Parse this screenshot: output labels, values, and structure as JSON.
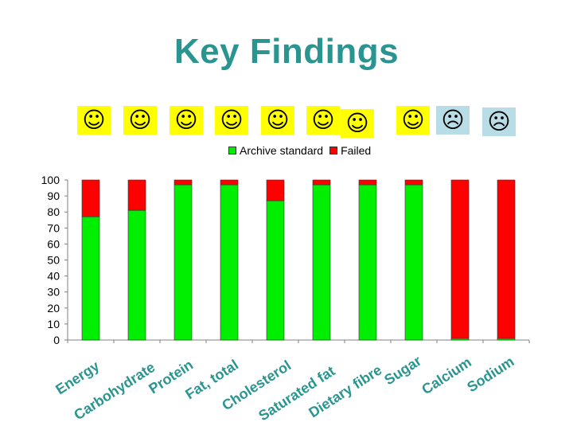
{
  "slide": {
    "title": "Key Findings"
  },
  "faces": [
    {
      "glyph": "☺",
      "mood": "happy",
      "bg": "#ffff00"
    },
    {
      "glyph": "☺",
      "mood": "happy",
      "bg": "#ffff00"
    },
    {
      "glyph": "☺",
      "mood": "happy",
      "bg": "#ffff00"
    },
    {
      "glyph": "☺",
      "mood": "happy",
      "bg": "#ffff00"
    },
    {
      "glyph": "☺",
      "mood": "happy",
      "bg": "#ffff00"
    },
    {
      "glyph": "☺",
      "mood": "happy",
      "bg": "#ffff00"
    },
    {
      "glyph": "☺",
      "mood": "happy",
      "bg": "#ffff00"
    },
    {
      "glyph": "☺",
      "mood": "happy",
      "bg": "#ffff00"
    },
    {
      "glyph": "☹",
      "mood": "sad",
      "bg": "#b9dde6"
    },
    {
      "glyph": "☹",
      "mood": "sad",
      "bg": "#b9dde6"
    }
  ],
  "chart_data": {
    "type": "bar",
    "stacked": true,
    "categories": [
      "Energy",
      "Carbohydrate",
      "Protein",
      "Fat, total",
      "Cholesterol",
      "Saturated fat",
      "Dietary fibre",
      "Sugar",
      "Calcium",
      "Sodium"
    ],
    "series": [
      {
        "name": "Archive standard",
        "color": "#00ee00",
        "values": [
          77,
          81,
          97,
          97,
          87,
          97,
          97,
          97,
          1,
          1
        ]
      },
      {
        "name": "Failed",
        "color": "#ff0000",
        "values": [
          23,
          19,
          3,
          3,
          13,
          3,
          3,
          3,
          99,
          99
        ]
      }
    ],
    "ylim": [
      0,
      100
    ],
    "yticks": [
      0,
      10,
      20,
      30,
      40,
      50,
      60,
      70,
      80,
      90,
      100
    ],
    "legend_position": "top",
    "grid": false,
    "category_label_color": "#2a9590"
  }
}
